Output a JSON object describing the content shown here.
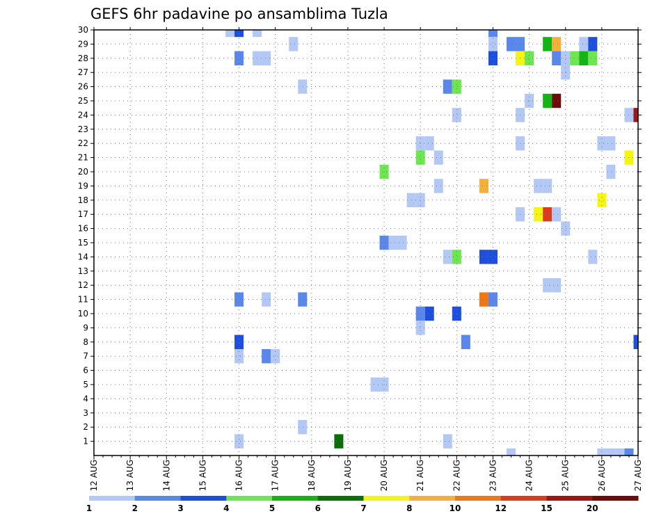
{
  "chart_data": {
    "type": "heatmap",
    "title": "GEFS 6hr padavine po ansamblima Tuzla",
    "xlabel": "",
    "ylabel": "",
    "x_tick_labels": [
      "12 AUG",
      "13 AUG",
      "14 AUG",
      "15 AUG",
      "16 AUG",
      "17 AUG",
      "18 AUG",
      "19 AUG",
      "20 AUG",
      "21 AUG",
      "22 AUG",
      "23 AUG",
      "24 AUG",
      "25 AUG",
      "26 AUG",
      "27 AUG"
    ],
    "y_tick_labels": [
      "1",
      "2",
      "3",
      "4",
      "5",
      "6",
      "7",
      "8",
      "9",
      "10",
      "11",
      "12",
      "13",
      "14",
      "15",
      "16",
      "17",
      "18",
      "19",
      "20",
      "21",
      "22",
      "23",
      "24",
      "25",
      "26",
      "27",
      "28",
      "29",
      "30"
    ],
    "x_unit": "6-hour step since 12 AUG 00Z",
    "x_range": [
      0,
      60
    ],
    "y_range": [
      0,
      30
    ],
    "grid": true,
    "colorbar": {
      "levels": [
        "1",
        "2",
        "3",
        "4",
        "5",
        "6",
        "7",
        "8",
        "10",
        "12",
        "15",
        "20"
      ],
      "colors": [
        "#b4c8f5",
        "#5a87ec",
        "#1e4fdc",
        "#6ee650",
        "#14b414",
        "#0a6e0a",
        "#f5f514",
        "#f5af3c",
        "#f07814",
        "#dc3c1e",
        "#a01414",
        "#6e0a0a"
      ]
    },
    "cells": [
      {
        "x": 15,
        "y": 30,
        "c": 1
      },
      {
        "x": 16,
        "y": 30,
        "c": 3
      },
      {
        "x": 18,
        "y": 30,
        "c": 1
      },
      {
        "x": 44,
        "y": 30,
        "c": 2
      },
      {
        "x": 22,
        "y": 29,
        "c": 1
      },
      {
        "x": 44,
        "y": 29,
        "c": 1
      },
      {
        "x": 46,
        "y": 29,
        "c": 2
      },
      {
        "x": 47,
        "y": 29,
        "c": 2
      },
      {
        "x": 50,
        "y": 29,
        "c": 5
      },
      {
        "x": 51,
        "y": 29,
        "c": 8
      },
      {
        "x": 54,
        "y": 29,
        "c": 1
      },
      {
        "x": 55,
        "y": 29,
        "c": 3
      },
      {
        "x": 16,
        "y": 28,
        "c": 2
      },
      {
        "x": 18,
        "y": 28,
        "c": 1
      },
      {
        "x": 19,
        "y": 28,
        "c": 1
      },
      {
        "x": 44,
        "y": 28,
        "c": 3
      },
      {
        "x": 47,
        "y": 28,
        "c": 7
      },
      {
        "x": 48,
        "y": 28,
        "c": 4
      },
      {
        "x": 51,
        "y": 28,
        "c": 2
      },
      {
        "x": 52,
        "y": 28,
        "c": 1
      },
      {
        "x": 53,
        "y": 28,
        "c": 4
      },
      {
        "x": 54,
        "y": 28,
        "c": 5
      },
      {
        "x": 55,
        "y": 28,
        "c": 4
      },
      {
        "x": 52,
        "y": 27,
        "c": 1
      },
      {
        "x": 23,
        "y": 26,
        "c": 1
      },
      {
        "x": 39,
        "y": 26,
        "c": 2
      },
      {
        "x": 40,
        "y": 26,
        "c": 4
      },
      {
        "x": 48,
        "y": 25,
        "c": 1
      },
      {
        "x": 50,
        "y": 25,
        "c": 5
      },
      {
        "x": 51,
        "y": 25,
        "c": 12
      },
      {
        "x": 40,
        "y": 24,
        "c": 1
      },
      {
        "x": 47,
        "y": 24,
        "c": 1
      },
      {
        "x": 59,
        "y": 24,
        "c": 1
      },
      {
        "x": 60,
        "y": 24,
        "c": 11
      },
      {
        "x": 36,
        "y": 22,
        "c": 1
      },
      {
        "x": 37,
        "y": 22,
        "c": 1
      },
      {
        "x": 47,
        "y": 22,
        "c": 1
      },
      {
        "x": 56,
        "y": 22,
        "c": 1
      },
      {
        "x": 57,
        "y": 22,
        "c": 1
      },
      {
        "x": 36,
        "y": 21,
        "c": 4
      },
      {
        "x": 38,
        "y": 21,
        "c": 1
      },
      {
        "x": 59,
        "y": 21,
        "c": 7
      },
      {
        "x": 32,
        "y": 20,
        "c": 4
      },
      {
        "x": 57,
        "y": 20,
        "c": 1
      },
      {
        "x": 38,
        "y": 19,
        "c": 1
      },
      {
        "x": 43,
        "y": 19,
        "c": 8
      },
      {
        "x": 49,
        "y": 19,
        "c": 1
      },
      {
        "x": 50,
        "y": 19,
        "c": 1
      },
      {
        "x": 35,
        "y": 18,
        "c": 1
      },
      {
        "x": 36,
        "y": 18,
        "c": 1
      },
      {
        "x": 56,
        "y": 18,
        "c": 7
      },
      {
        "x": 47,
        "y": 17,
        "c": 1
      },
      {
        "x": 49,
        "y": 17,
        "c": 7
      },
      {
        "x": 50,
        "y": 17,
        "c": 10
      },
      {
        "x": 51,
        "y": 17,
        "c": 1
      },
      {
        "x": 52,
        "y": 16,
        "c": 1
      },
      {
        "x": 32,
        "y": 15,
        "c": 2
      },
      {
        "x": 33,
        "y": 15,
        "c": 1
      },
      {
        "x": 34,
        "y": 15,
        "c": 1
      },
      {
        "x": 39,
        "y": 14,
        "c": 1
      },
      {
        "x": 40,
        "y": 14,
        "c": 4
      },
      {
        "x": 43,
        "y": 14,
        "c": 3
      },
      {
        "x": 44,
        "y": 14,
        "c": 3
      },
      {
        "x": 55,
        "y": 14,
        "c": 1
      },
      {
        "x": 50,
        "y": 12,
        "c": 1
      },
      {
        "x": 51,
        "y": 12,
        "c": 1
      },
      {
        "x": 16,
        "y": 11,
        "c": 2
      },
      {
        "x": 19,
        "y": 11,
        "c": 1
      },
      {
        "x": 23,
        "y": 11,
        "c": 2
      },
      {
        "x": 43,
        "y": 11,
        "c": 9
      },
      {
        "x": 44,
        "y": 11,
        "c": 2
      },
      {
        "x": 36,
        "y": 10,
        "c": 2
      },
      {
        "x": 37,
        "y": 10,
        "c": 3
      },
      {
        "x": 40,
        "y": 10,
        "c": 3
      },
      {
        "x": 36,
        "y": 9,
        "c": 1
      },
      {
        "x": 16,
        "y": 8,
        "c": 3
      },
      {
        "x": 41,
        "y": 8,
        "c": 2
      },
      {
        "x": 60,
        "y": 8,
        "c": 3
      },
      {
        "x": 16,
        "y": 7,
        "c": 1
      },
      {
        "x": 19,
        "y": 7,
        "c": 2
      },
      {
        "x": 20,
        "y": 7,
        "c": 1
      },
      {
        "x": 31,
        "y": 5,
        "c": 1
      },
      {
        "x": 32,
        "y": 5,
        "c": 1
      },
      {
        "x": 23,
        "y": 2,
        "c": 1
      },
      {
        "x": 16,
        "y": 1,
        "c": 1
      },
      {
        "x": 27,
        "y": 1,
        "c": 6
      },
      {
        "x": 39,
        "y": 1,
        "c": 1
      },
      {
        "x": 46,
        "y": 0,
        "c": 1
      },
      {
        "x": 56,
        "y": 0,
        "c": 1
      },
      {
        "x": 57,
        "y": 0,
        "c": 1
      },
      {
        "x": 58,
        "y": 0,
        "c": 1
      },
      {
        "x": 59,
        "y": 0,
        "c": 2
      }
    ]
  }
}
